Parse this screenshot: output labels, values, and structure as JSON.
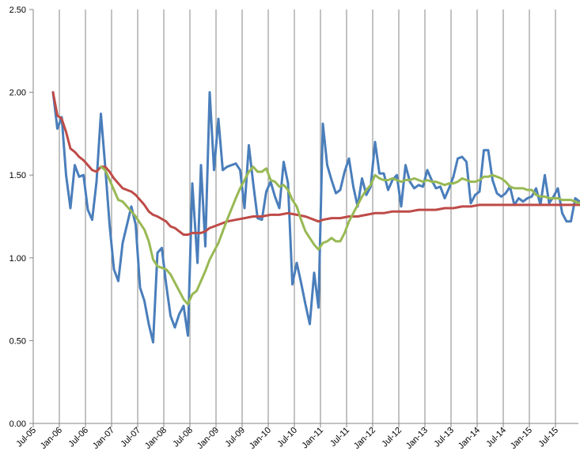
{
  "chart_data": {
    "type": "line",
    "title": "",
    "xlabel": "",
    "ylabel": "",
    "ylim": [
      0,
      2.5
    ],
    "yticks": [
      "0.00",
      "0.50",
      "1.00",
      "1.50",
      "2.00",
      "2.50"
    ],
    "xticks": [
      "Jul-05",
      "Jan-06",
      "Jul-06",
      "Jan-07",
      "Jul-07",
      "Jan-08",
      "Jul-08",
      "Jan-09",
      "Jul-09",
      "Jan-10",
      "Jul-10",
      "Jan-11",
      "Jul-11",
      "Jan-12",
      "Jul-12",
      "Jan-13",
      "Jul-13",
      "Jan-14",
      "Jul-14",
      "Jan-15",
      "Jul-15"
    ],
    "grid": "vertical",
    "legend": "none",
    "x_start": "Dec-05",
    "x_end": "Oct-15",
    "colors": {
      "series1": "#4a7ebb",
      "series2": "#be4b48",
      "series3": "#98b954"
    },
    "series": [
      {
        "color": "#4a7ebb",
        "points": [
          [
            0,
            2.0
          ],
          [
            0.5,
            1.78
          ],
          [
            1,
            1.85
          ],
          [
            1.5,
            1.5
          ],
          [
            2,
            1.3
          ],
          [
            2.5,
            1.56
          ],
          [
            3,
            1.49
          ],
          [
            3.5,
            1.5
          ],
          [
            4,
            1.29
          ],
          [
            4.5,
            1.23
          ],
          [
            5,
            1.46
          ],
          [
            5.5,
            1.87
          ],
          [
            6,
            1.55
          ],
          [
            6.5,
            1.2
          ],
          [
            7,
            0.93
          ],
          [
            7.5,
            0.86
          ],
          [
            8,
            1.09
          ],
          [
            9,
            1.31
          ],
          [
            9.5,
            1.2
          ],
          [
            10,
            0.82
          ],
          [
            10.5,
            0.74
          ],
          [
            11,
            0.6
          ],
          [
            11.5,
            0.49
          ],
          [
            12,
            1.03
          ],
          [
            12.5,
            1.06
          ],
          [
            13,
            0.84
          ],
          [
            13.5,
            0.65
          ],
          [
            14,
            0.58
          ],
          [
            14.5,
            0.66
          ],
          [
            15,
            0.71
          ],
          [
            15.5,
            0.53
          ],
          [
            16,
            1.45
          ],
          [
            16.6,
            0.97
          ],
          [
            17,
            1.56
          ],
          [
            17.5,
            1.07
          ],
          [
            18,
            2.0
          ],
          [
            18.5,
            1.53
          ],
          [
            19,
            1.84
          ],
          [
            19.5,
            1.53
          ],
          [
            20,
            1.55
          ],
          [
            21,
            1.57
          ],
          [
            21.5,
            1.53
          ],
          [
            22,
            1.3
          ],
          [
            22.5,
            1.68
          ],
          [
            23,
            1.45
          ],
          [
            23.5,
            1.24
          ],
          [
            24,
            1.23
          ],
          [
            24.5,
            1.4
          ],
          [
            25,
            1.46
          ],
          [
            25.5,
            1.37
          ],
          [
            26,
            1.3
          ],
          [
            26.5,
            1.58
          ],
          [
            27,
            1.45
          ],
          [
            27.5,
            0.84
          ],
          [
            28,
            0.97
          ],
          [
            28.5,
            0.85
          ],
          [
            29,
            0.72
          ],
          [
            29.5,
            0.6
          ],
          [
            30,
            0.91
          ],
          [
            30.5,
            0.7
          ],
          [
            31,
            1.81
          ],
          [
            31.5,
            1.56
          ],
          [
            32,
            1.47
          ],
          [
            32.5,
            1.39
          ],
          [
            33,
            1.41
          ],
          [
            33.5,
            1.52
          ],
          [
            34,
            1.6
          ],
          [
            34.5,
            1.43
          ],
          [
            35,
            1.31
          ],
          [
            35.5,
            1.48
          ],
          [
            36,
            1.38
          ],
          [
            36.5,
            1.43
          ],
          [
            37,
            1.7
          ],
          [
            37.5,
            1.51
          ],
          [
            38,
            1.51
          ],
          [
            38.5,
            1.41
          ],
          [
            39,
            1.47
          ],
          [
            39.5,
            1.5
          ],
          [
            40,
            1.31
          ],
          [
            40.5,
            1.56
          ],
          [
            41,
            1.46
          ],
          [
            41.5,
            1.42
          ],
          [
            42,
            1.44
          ],
          [
            42.5,
            1.43
          ],
          [
            43,
            1.53
          ],
          [
            43.5,
            1.47
          ],
          [
            44,
            1.42
          ],
          [
            44.5,
            1.43
          ],
          [
            45,
            1.36
          ],
          [
            45.5,
            1.42
          ],
          [
            46,
            1.49
          ],
          [
            46.5,
            1.6
          ],
          [
            47,
            1.61
          ],
          [
            47.5,
            1.58
          ],
          [
            48,
            1.33
          ],
          [
            48.5,
            1.38
          ],
          [
            49,
            1.4
          ],
          [
            49.5,
            1.65
          ],
          [
            50,
            1.65
          ],
          [
            50.5,
            1.47
          ],
          [
            51,
            1.39
          ],
          [
            51.5,
            1.37
          ],
          [
            52,
            1.39
          ],
          [
            52.5,
            1.43
          ],
          [
            53,
            1.32
          ],
          [
            53.5,
            1.36
          ],
          [
            54,
            1.34
          ],
          [
            54.5,
            1.36
          ],
          [
            55,
            1.37
          ],
          [
            55.5,
            1.42
          ],
          [
            56,
            1.32
          ],
          [
            56.5,
            1.5
          ],
          [
            57,
            1.33
          ],
          [
            57.5,
            1.37
          ],
          [
            58,
            1.42
          ],
          [
            58.5,
            1.27
          ],
          [
            59,
            1.22
          ],
          [
            59.5,
            1.22
          ],
          [
            60,
            1.36
          ],
          [
            60.5,
            1.34
          ],
          [
            61,
            1.31
          ]
        ]
      },
      {
        "color": "#be4b48",
        "points": [
          [
            0,
            2.0
          ],
          [
            0.5,
            1.86
          ],
          [
            1,
            1.84
          ],
          [
            1.5,
            1.76
          ],
          [
            2,
            1.66
          ],
          [
            2.5,
            1.64
          ],
          [
            3,
            1.61
          ],
          [
            3.5,
            1.59
          ],
          [
            4,
            1.56
          ],
          [
            4.5,
            1.53
          ],
          [
            5,
            1.52
          ],
          [
            5.5,
            1.55
          ],
          [
            6,
            1.55
          ],
          [
            6.5,
            1.52
          ],
          [
            7,
            1.48
          ],
          [
            7.5,
            1.45
          ],
          [
            8,
            1.42
          ],
          [
            9,
            1.4
          ],
          [
            9.5,
            1.38
          ],
          [
            10,
            1.35
          ],
          [
            10.5,
            1.32
          ],
          [
            11,
            1.28
          ],
          [
            11.5,
            1.26
          ],
          [
            12,
            1.25
          ],
          [
            13,
            1.22
          ],
          [
            13.5,
            1.19
          ],
          [
            14,
            1.18
          ],
          [
            14.5,
            1.16
          ],
          [
            15,
            1.14
          ],
          [
            15.5,
            1.14
          ],
          [
            16,
            1.15
          ],
          [
            17,
            1.15
          ],
          [
            17.5,
            1.16
          ],
          [
            18,
            1.18
          ],
          [
            19,
            1.2
          ],
          [
            20,
            1.22
          ],
          [
            21,
            1.23
          ],
          [
            22,
            1.24
          ],
          [
            23,
            1.25
          ],
          [
            24,
            1.25
          ],
          [
            25,
            1.26
          ],
          [
            26,
            1.26
          ],
          [
            27,
            1.27
          ],
          [
            28,
            1.26
          ],
          [
            29,
            1.25
          ],
          [
            30,
            1.23
          ],
          [
            30.5,
            1.22
          ],
          [
            31,
            1.23
          ],
          [
            32,
            1.24
          ],
          [
            33,
            1.24
          ],
          [
            34,
            1.25
          ],
          [
            35,
            1.25
          ],
          [
            36,
            1.26
          ],
          [
            37,
            1.27
          ],
          [
            38,
            1.27
          ],
          [
            39,
            1.28
          ],
          [
            40,
            1.28
          ],
          [
            41,
            1.28
          ],
          [
            42,
            1.29
          ],
          [
            43,
            1.29
          ],
          [
            44,
            1.29
          ],
          [
            45,
            1.3
          ],
          [
            46,
            1.3
          ],
          [
            47,
            1.31
          ],
          [
            48,
            1.31
          ],
          [
            49,
            1.32
          ],
          [
            50,
            1.32
          ],
          [
            51,
            1.32
          ],
          [
            52,
            1.32
          ],
          [
            53,
            1.32
          ],
          [
            54,
            1.32
          ],
          [
            55,
            1.32
          ],
          [
            56,
            1.32
          ],
          [
            57,
            1.32
          ],
          [
            58,
            1.32
          ],
          [
            59,
            1.32
          ],
          [
            60,
            1.32
          ],
          [
            61,
            1.32
          ]
        ]
      },
      {
        "color": "#98b954",
        "points": [
          [
            5.5,
            1.55
          ],
          [
            6,
            1.53
          ],
          [
            6.5,
            1.47
          ],
          [
            7,
            1.41
          ],
          [
            7.5,
            1.35
          ],
          [
            8,
            1.34
          ],
          [
            8.5,
            1.31
          ],
          [
            9,
            1.28
          ],
          [
            9.5,
            1.25
          ],
          [
            10,
            1.21
          ],
          [
            10.5,
            1.17
          ],
          [
            11,
            1.1
          ],
          [
            11.5,
            0.99
          ],
          [
            12,
            0.95
          ],
          [
            12.5,
            0.94
          ],
          [
            13,
            0.93
          ],
          [
            13.5,
            0.9
          ],
          [
            14,
            0.85
          ],
          [
            14.5,
            0.8
          ],
          [
            15,
            0.75
          ],
          [
            15.5,
            0.72
          ],
          [
            16,
            0.78
          ],
          [
            16.5,
            0.8
          ],
          [
            17,
            0.86
          ],
          [
            17.5,
            0.92
          ],
          [
            18,
            0.99
          ],
          [
            18.5,
            1.04
          ],
          [
            19,
            1.09
          ],
          [
            19.5,
            1.16
          ],
          [
            20,
            1.23
          ],
          [
            21,
            1.36
          ],
          [
            21.5,
            1.42
          ],
          [
            22,
            1.47
          ],
          [
            22.5,
            1.52
          ],
          [
            23,
            1.55
          ],
          [
            23.5,
            1.52
          ],
          [
            24,
            1.52
          ],
          [
            24.5,
            1.54
          ],
          [
            25,
            1.47
          ],
          [
            25.5,
            1.46
          ],
          [
            26,
            1.43
          ],
          [
            26.5,
            1.44
          ],
          [
            27,
            1.41
          ],
          [
            27.5,
            1.35
          ],
          [
            28,
            1.31
          ],
          [
            28.5,
            1.23
          ],
          [
            29,
            1.16
          ],
          [
            29.5,
            1.12
          ],
          [
            30,
            1.08
          ],
          [
            30.5,
            1.05
          ],
          [
            31,
            1.09
          ],
          [
            31.5,
            1.1
          ],
          [
            32,
            1.12
          ],
          [
            32.5,
            1.1
          ],
          [
            33,
            1.1
          ],
          [
            33.5,
            1.15
          ],
          [
            34,
            1.22
          ],
          [
            34.5,
            1.27
          ],
          [
            35,
            1.32
          ],
          [
            35.5,
            1.37
          ],
          [
            36,
            1.41
          ],
          [
            36.5,
            1.44
          ],
          [
            37,
            1.5
          ],
          [
            37.5,
            1.48
          ],
          [
            38,
            1.47
          ],
          [
            38.5,
            1.47
          ],
          [
            39,
            1.48
          ],
          [
            39.5,
            1.47
          ],
          [
            40,
            1.46
          ],
          [
            40.5,
            1.47
          ],
          [
            41,
            1.47
          ],
          [
            41.5,
            1.48
          ],
          [
            42,
            1.47
          ],
          [
            42.5,
            1.46
          ],
          [
            43,
            1.47
          ],
          [
            43.5,
            1.46
          ],
          [
            44,
            1.46
          ],
          [
            44.5,
            1.45
          ],
          [
            45,
            1.44
          ],
          [
            45.5,
            1.45
          ],
          [
            46,
            1.45
          ],
          [
            46.5,
            1.46
          ],
          [
            47,
            1.48
          ],
          [
            47.5,
            1.47
          ],
          [
            48,
            1.46
          ],
          [
            48.5,
            1.46
          ],
          [
            49,
            1.47
          ],
          [
            49.5,
            1.49
          ],
          [
            50,
            1.49
          ],
          [
            50.5,
            1.5
          ],
          [
            51,
            1.49
          ],
          [
            51.5,
            1.48
          ],
          [
            52,
            1.46
          ],
          [
            52.5,
            1.43
          ],
          [
            53,
            1.42
          ],
          [
            53.5,
            1.42
          ],
          [
            54,
            1.42
          ],
          [
            54.5,
            1.41
          ],
          [
            55,
            1.41
          ],
          [
            55.5,
            1.38
          ],
          [
            56,
            1.37
          ],
          [
            56.5,
            1.37
          ],
          [
            57,
            1.36
          ],
          [
            57.5,
            1.36
          ],
          [
            58,
            1.36
          ],
          [
            58.5,
            1.35
          ],
          [
            59,
            1.35
          ],
          [
            59.5,
            1.35
          ],
          [
            60,
            1.34
          ],
          [
            60.5,
            1.33
          ],
          [
            61,
            1.34
          ]
        ]
      }
    ]
  }
}
